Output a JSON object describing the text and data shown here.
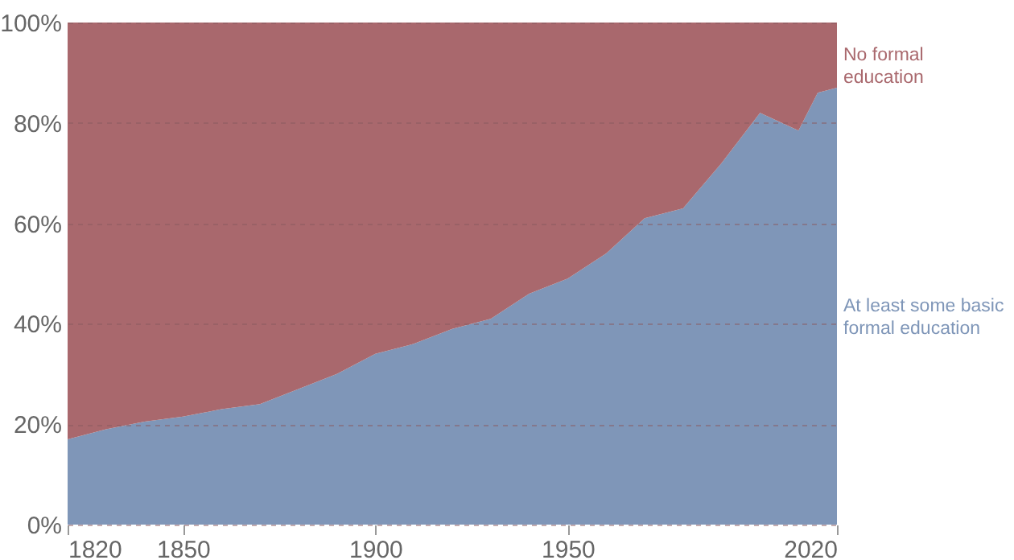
{
  "chart_data": {
    "type": "area",
    "stacked": true,
    "x": [
      1820,
      1830,
      1840,
      1850,
      1860,
      1870,
      1880,
      1890,
      1900,
      1910,
      1920,
      1930,
      1940,
      1950,
      1960,
      1970,
      1980,
      1990,
      2000,
      2010,
      2015,
      2020
    ],
    "series": [
      {
        "name": "At least some basic formal education",
        "color": "#7f96b8",
        "values": [
          17,
          19,
          20.5,
          21.5,
          23,
          24,
          27,
          30,
          34,
          36,
          39,
          41,
          46,
          49,
          54,
          61,
          63,
          72,
          82,
          78.5,
          86,
          87
        ]
      },
      {
        "name": "No formal education",
        "color": "#a9686d",
        "values": [
          83,
          81,
          79.5,
          78.5,
          77,
          76,
          73,
          70,
          66,
          64,
          61,
          59,
          54,
          51,
          46,
          39,
          37,
          28,
          18,
          21.5,
          14,
          13
        ]
      }
    ],
    "xlim": [
      1820,
      2020
    ],
    "xticks": [
      1820,
      1850,
      1900,
      1950,
      2020
    ],
    "ylim": [
      0,
      100
    ],
    "yticks": [
      {
        "value": 0,
        "label": "0%"
      },
      {
        "value": 20,
        "label": "20%"
      },
      {
        "value": 40,
        "label": "40%"
      },
      {
        "value": 60,
        "label": "60%"
      },
      {
        "value": 80,
        "label": "80%"
      },
      {
        "value": 100,
        "label": "100%"
      }
    ],
    "grid": "y"
  }
}
